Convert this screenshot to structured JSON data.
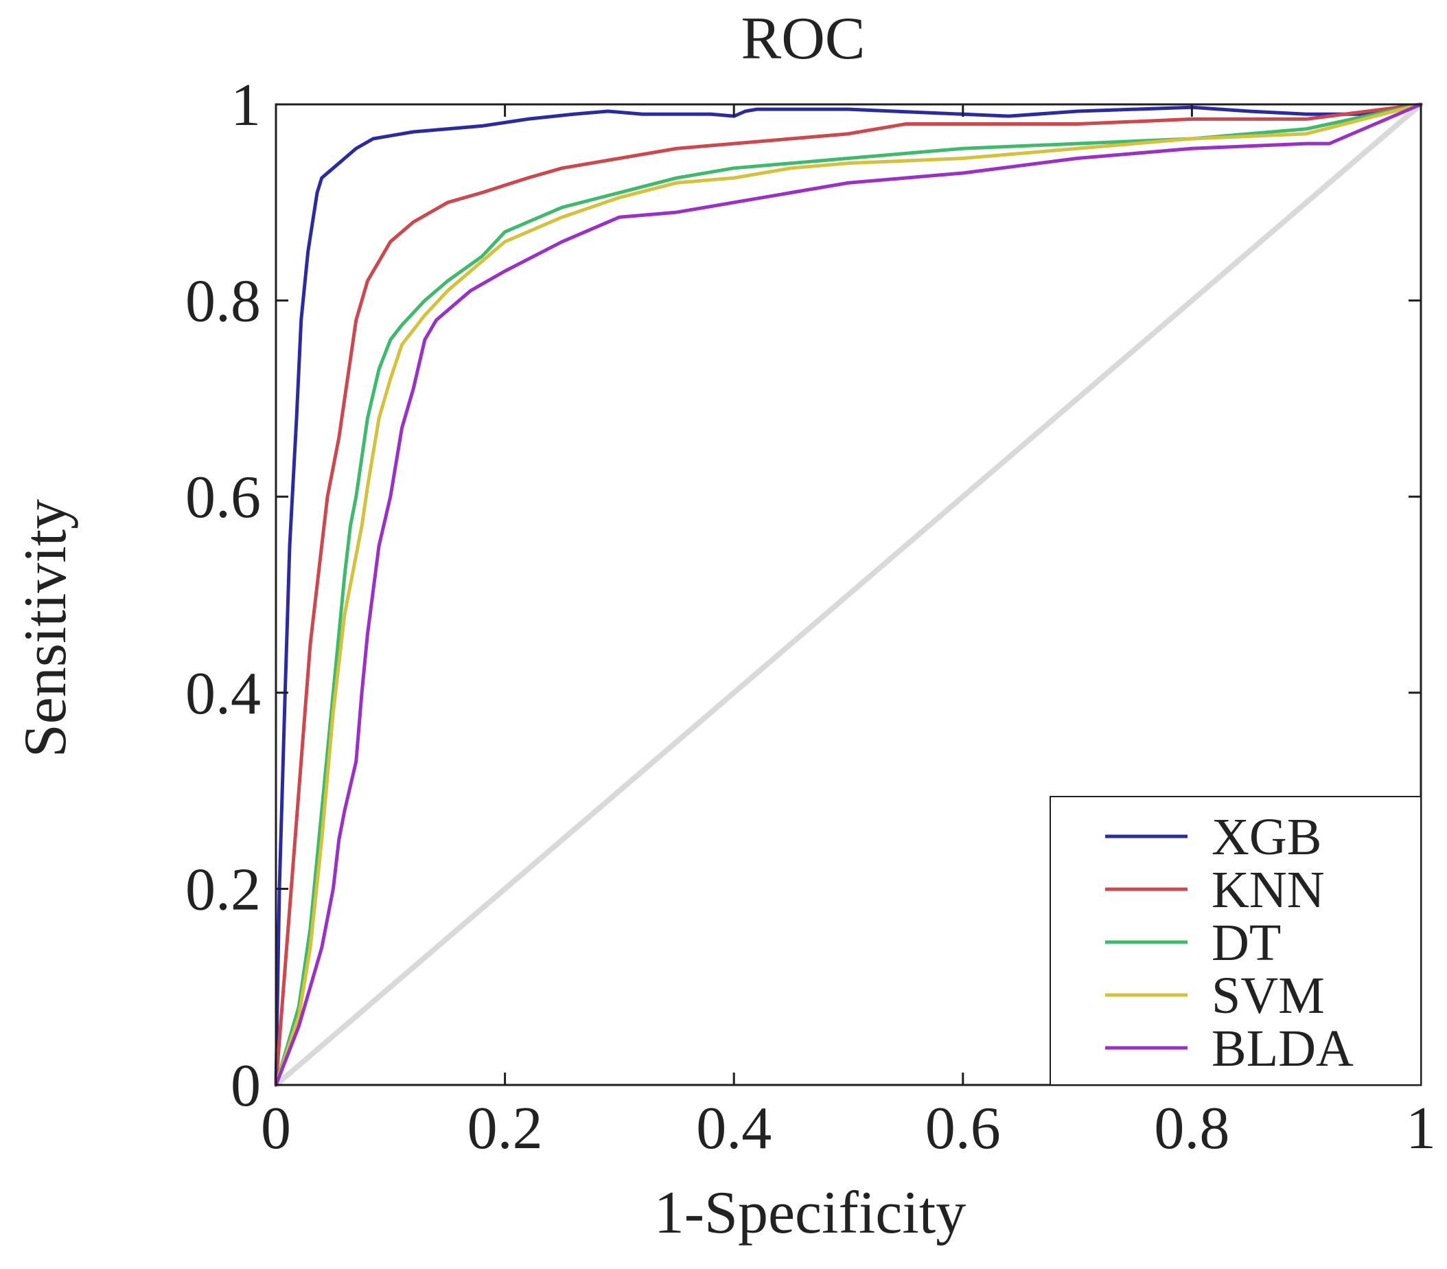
{
  "chart_data": {
    "type": "line",
    "title": "ROC",
    "xlabel": "1-Specificity",
    "ylabel": "Sensitivity",
    "xlim": [
      0,
      1
    ],
    "ylim": [
      0,
      1
    ],
    "xticks": [
      {
        "value": 0,
        "label": "0"
      },
      {
        "value": 0.2,
        "label": "0.2"
      },
      {
        "value": 0.4,
        "label": "0.4"
      },
      {
        "value": 0.6,
        "label": "0.6"
      },
      {
        "value": 0.8,
        "label": "0.8"
      },
      {
        "value": 1,
        "label": "1"
      }
    ],
    "yticks": [
      {
        "value": 0,
        "label": "0"
      },
      {
        "value": 0.2,
        "label": "0.2"
      },
      {
        "value": 0.4,
        "label": "0.4"
      },
      {
        "value": 0.6,
        "label": "0.6"
      },
      {
        "value": 0.8,
        "label": "0.8"
      },
      {
        "value": 1,
        "label": "1"
      }
    ],
    "grid": false,
    "legend_position": "bottom-right",
    "reference_line": {
      "x": [
        0,
        1
      ],
      "y": [
        0,
        1
      ],
      "color": "#d9d9d9"
    },
    "series": [
      {
        "name": "XGB",
        "color": "#2a2aa6",
        "x": [
          0,
          0.003,
          0.008,
          0.012,
          0.018,
          0.022,
          0.028,
          0.032,
          0.036,
          0.04,
          0.045,
          0.055,
          0.07,
          0.085,
          0.1,
          0.12,
          0.15,
          0.18,
          0.22,
          0.26,
          0.29,
          0.32,
          0.35,
          0.38,
          0.4,
          0.41,
          0.42,
          0.5,
          0.6,
          0.64,
          0.7,
          0.8,
          0.85,
          0.9,
          0.95,
          1
        ],
        "y": [
          0,
          0.2,
          0.4,
          0.55,
          0.68,
          0.78,
          0.85,
          0.88,
          0.91,
          0.925,
          0.93,
          0.94,
          0.955,
          0.965,
          0.968,
          0.972,
          0.975,
          0.978,
          0.985,
          0.99,
          0.993,
          0.99,
          0.99,
          0.99,
          0.988,
          0.993,
          0.995,
          0.995,
          0.99,
          0.988,
          0.993,
          0.997,
          0.993,
          0.99,
          0.99,
          1
        ]
      },
      {
        "name": "KNN",
        "color": "#d0464d",
        "x": [
          0,
          0.01,
          0.02,
          0.03,
          0.04,
          0.045,
          0.05,
          0.055,
          0.06,
          0.065,
          0.07,
          0.08,
          0.09,
          0.1,
          0.12,
          0.15,
          0.18,
          0.22,
          0.25,
          0.3,
          0.35,
          0.4,
          0.45,
          0.5,
          0.55,
          0.6,
          0.7,
          0.8,
          0.9,
          1
        ],
        "y": [
          0,
          0.15,
          0.3,
          0.45,
          0.55,
          0.6,
          0.63,
          0.66,
          0.7,
          0.74,
          0.78,
          0.82,
          0.84,
          0.86,
          0.88,
          0.9,
          0.91,
          0.925,
          0.935,
          0.945,
          0.955,
          0.96,
          0.965,
          0.97,
          0.98,
          0.98,
          0.98,
          0.985,
          0.985,
          1
        ]
      },
      {
        "name": "DT",
        "color": "#3dbb6c",
        "x": [
          0,
          0.02,
          0.03,
          0.04,
          0.05,
          0.06,
          0.065,
          0.07,
          0.075,
          0.08,
          0.09,
          0.1,
          0.11,
          0.13,
          0.15,
          0.18,
          0.2,
          0.25,
          0.3,
          0.35,
          0.4,
          0.45,
          0.5,
          0.6,
          0.7,
          0.8,
          0.9,
          1
        ],
        "y": [
          0,
          0.08,
          0.16,
          0.28,
          0.4,
          0.52,
          0.57,
          0.6,
          0.64,
          0.68,
          0.73,
          0.76,
          0.775,
          0.8,
          0.82,
          0.845,
          0.87,
          0.895,
          0.91,
          0.925,
          0.935,
          0.94,
          0.945,
          0.955,
          0.96,
          0.965,
          0.975,
          1
        ]
      },
      {
        "name": "SVM",
        "color": "#d6c23a",
        "x": [
          0,
          0.02,
          0.03,
          0.04,
          0.05,
          0.06,
          0.07,
          0.075,
          0.08,
          0.09,
          0.1,
          0.11,
          0.13,
          0.15,
          0.18,
          0.2,
          0.25,
          0.3,
          0.35,
          0.4,
          0.45,
          0.5,
          0.6,
          0.7,
          0.8,
          0.9,
          1
        ],
        "y": [
          0,
          0.07,
          0.14,
          0.25,
          0.38,
          0.48,
          0.54,
          0.57,
          0.61,
          0.68,
          0.72,
          0.755,
          0.785,
          0.81,
          0.84,
          0.86,
          0.885,
          0.905,
          0.92,
          0.925,
          0.935,
          0.94,
          0.945,
          0.955,
          0.965,
          0.97,
          1
        ]
      },
      {
        "name": "BLDA",
        "color": "#9a2fc9",
        "x": [
          0,
          0.02,
          0.03,
          0.04,
          0.05,
          0.055,
          0.06,
          0.07,
          0.075,
          0.08,
          0.09,
          0.1,
          0.11,
          0.12,
          0.13,
          0.14,
          0.15,
          0.17,
          0.2,
          0.25,
          0.3,
          0.35,
          0.4,
          0.45,
          0.5,
          0.6,
          0.7,
          0.8,
          0.9,
          0.92,
          1
        ],
        "y": [
          0,
          0.06,
          0.1,
          0.14,
          0.2,
          0.25,
          0.28,
          0.33,
          0.4,
          0.46,
          0.55,
          0.6,
          0.67,
          0.71,
          0.76,
          0.78,
          0.79,
          0.81,
          0.83,
          0.86,
          0.885,
          0.89,
          0.9,
          0.91,
          0.92,
          0.93,
          0.945,
          0.955,
          0.96,
          0.96,
          1
        ]
      }
    ]
  }
}
